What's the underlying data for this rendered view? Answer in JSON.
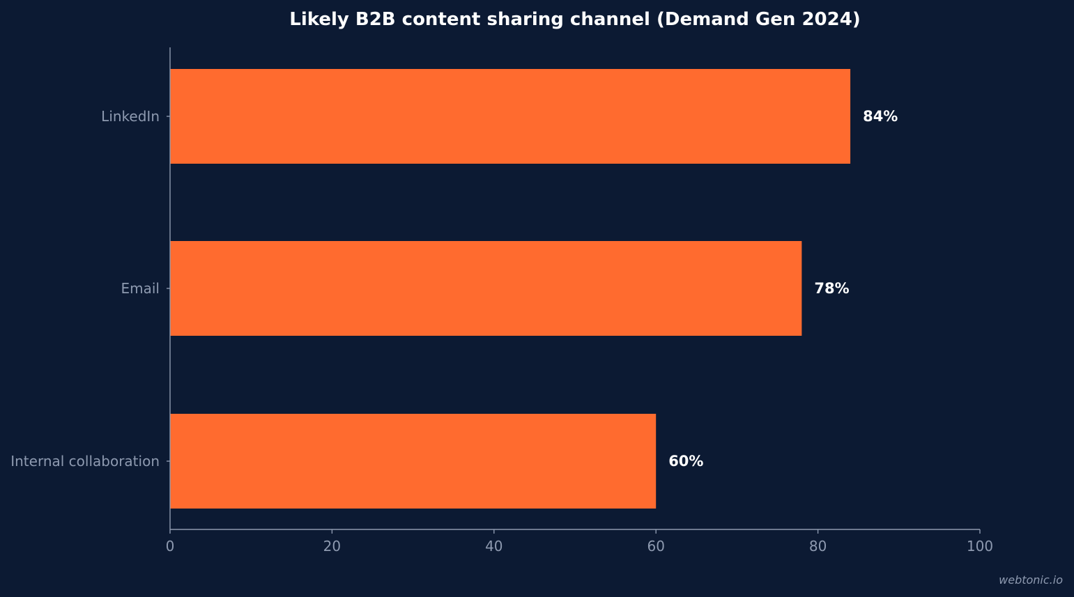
{
  "chart_data": {
    "type": "bar",
    "orientation": "horizontal",
    "title": "Likely B2B content sharing channel (Demand Gen 2024)",
    "xlabel": "",
    "ylabel": "",
    "categories": [
      "LinkedIn",
      "Email",
      "Internal collaboration"
    ],
    "values": [
      84,
      78,
      60
    ],
    "data_labels": [
      "84%",
      "78%",
      "60%"
    ],
    "xlim": [
      0,
      100
    ],
    "xticks": [
      0,
      20,
      40,
      60,
      80,
      100
    ],
    "grid": false,
    "legend": "none",
    "colors": {
      "background": "#0c1a33",
      "bar": "#ff6b2f",
      "axis": "#8e9ab0",
      "text": "#ffffff",
      "muted_text": "#8e9ab0"
    }
  },
  "watermark": "webtonic.io"
}
